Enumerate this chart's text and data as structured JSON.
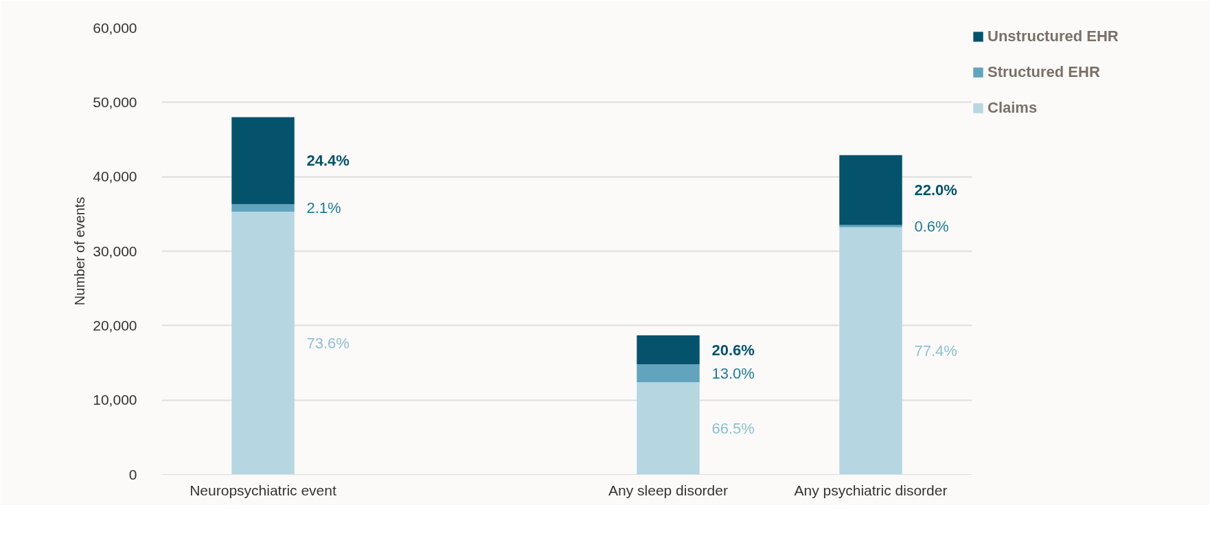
{
  "chart_data": {
    "type": "bar",
    "stacked": true,
    "ylabel": "Number of events",
    "categories": [
      "Neuropsychiatric event",
      null,
      "Any sleep disorder",
      "Any psychiatric disorder"
    ],
    "series": [
      {
        "name": "Claims",
        "color": "#b6d6e2",
        "values": [
          35300,
          null,
          12400,
          33200
        ]
      },
      {
        "name": "Structured EHR",
        "color": "#62a4bd",
        "values": [
          1000,
          null,
          2400,
          300
        ]
      },
      {
        "name": "Unstructured EHR",
        "color": "#05526c",
        "values": [
          11700,
          null,
          3900,
          9400
        ]
      }
    ],
    "annotations": [
      "73.6%",
      "2.1%",
      "24.4%",
      "66.5%",
      "13.0%",
      "20.6%",
      "77.4%",
      "0.6%",
      "22.0%"
    ],
    "ylim": [
      0,
      60000
    ],
    "yticks": [
      {
        "value": 0,
        "label": "0"
      },
      {
        "value": 10000,
        "label": "10,000"
      },
      {
        "value": 20000,
        "label": "20,000"
      },
      {
        "value": 30000,
        "label": "30,000"
      },
      {
        "value": 40000,
        "label": "40,000"
      },
      {
        "value": 50000,
        "label": "50,000"
      },
      {
        "value": 60000,
        "label": "60,000"
      }
    ],
    "grid": "y",
    "legend": "top right"
  }
}
